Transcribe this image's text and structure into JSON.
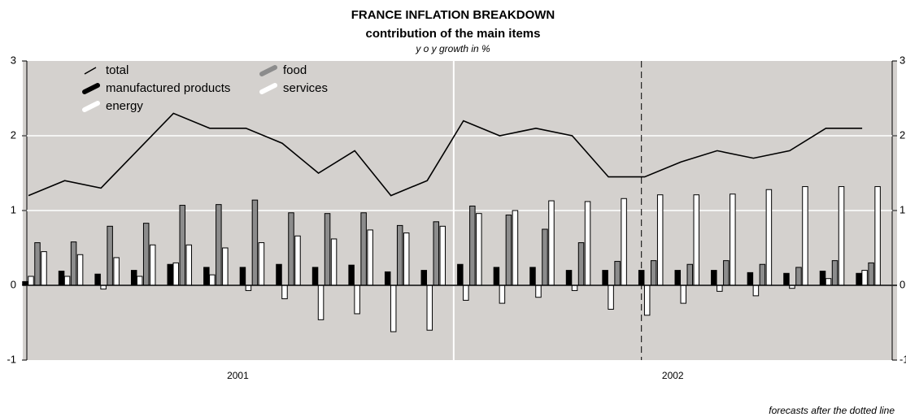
{
  "chart_data": {
    "type": "bar",
    "title": "FRANCE INFLATION BREAKDOWN",
    "subtitle": "contribution of the main items",
    "y_label": "y o y growth in %",
    "note": "forecasts after the dotted line",
    "years": [
      "2001",
      "2002"
    ],
    "forecast_index": 17,
    "ylim": [
      -1,
      3
    ],
    "yticks": [
      -1,
      0,
      1,
      2,
      3
    ],
    "grid": true,
    "line": {
      "name": "total",
      "color": "#000000",
      "values": [
        1.2,
        1.4,
        1.3,
        1.8,
        2.3,
        2.1,
        2.1,
        1.9,
        1.5,
        1.8,
        1.2,
        1.4,
        2.2,
        2.0,
        2.1,
        2.0,
        1.45,
        1.45,
        1.65,
        1.8,
        1.7,
        1.8,
        2.1,
        2.1
      ]
    },
    "series": [
      {
        "name": "manufactured products",
        "color": "#000000",
        "values": [
          0.05,
          0.19,
          0.15,
          0.2,
          0.28,
          0.24,
          0.24,
          0.28,
          0.24,
          0.27,
          0.18,
          0.2,
          0.28,
          0.24,
          0.24,
          0.2,
          0.2,
          0.2,
          0.2,
          0.2,
          0.17,
          0.16,
          0.19,
          0.16
        ]
      },
      {
        "name": "energy",
        "color": "#ffffff",
        "values": [
          0.12,
          0.12,
          -0.05,
          0.12,
          0.3,
          0.14,
          -0.07,
          -0.18,
          -0.46,
          -0.38,
          -0.62,
          -0.6,
          -0.2,
          -0.24,
          -0.16,
          -0.07,
          -0.32,
          -0.4,
          -0.24,
          -0.08,
          -0.14,
          -0.04,
          0.09,
          0.2
        ]
      },
      {
        "name": "food",
        "color": "#8c8c8c",
        "values": [
          0.57,
          0.58,
          0.79,
          0.83,
          1.07,
          1.08,
          1.14,
          0.97,
          0.96,
          0.97,
          0.8,
          0.85,
          1.06,
          0.94,
          0.75,
          0.57,
          0.32,
          0.33,
          0.28,
          0.33,
          0.28,
          0.24,
          0.33,
          0.3
        ]
      },
      {
        "name": "services",
        "color": "#ffffff",
        "values": [
          0.45,
          0.41,
          0.37,
          0.54,
          0.54,
          0.5,
          0.57,
          0.66,
          0.62,
          0.74,
          0.7,
          0.79,
          0.96,
          1.0,
          1.13,
          1.12,
          1.16,
          1.21,
          1.21,
          1.22,
          1.28,
          1.32,
          1.32,
          1.32
        ]
      }
    ]
  }
}
